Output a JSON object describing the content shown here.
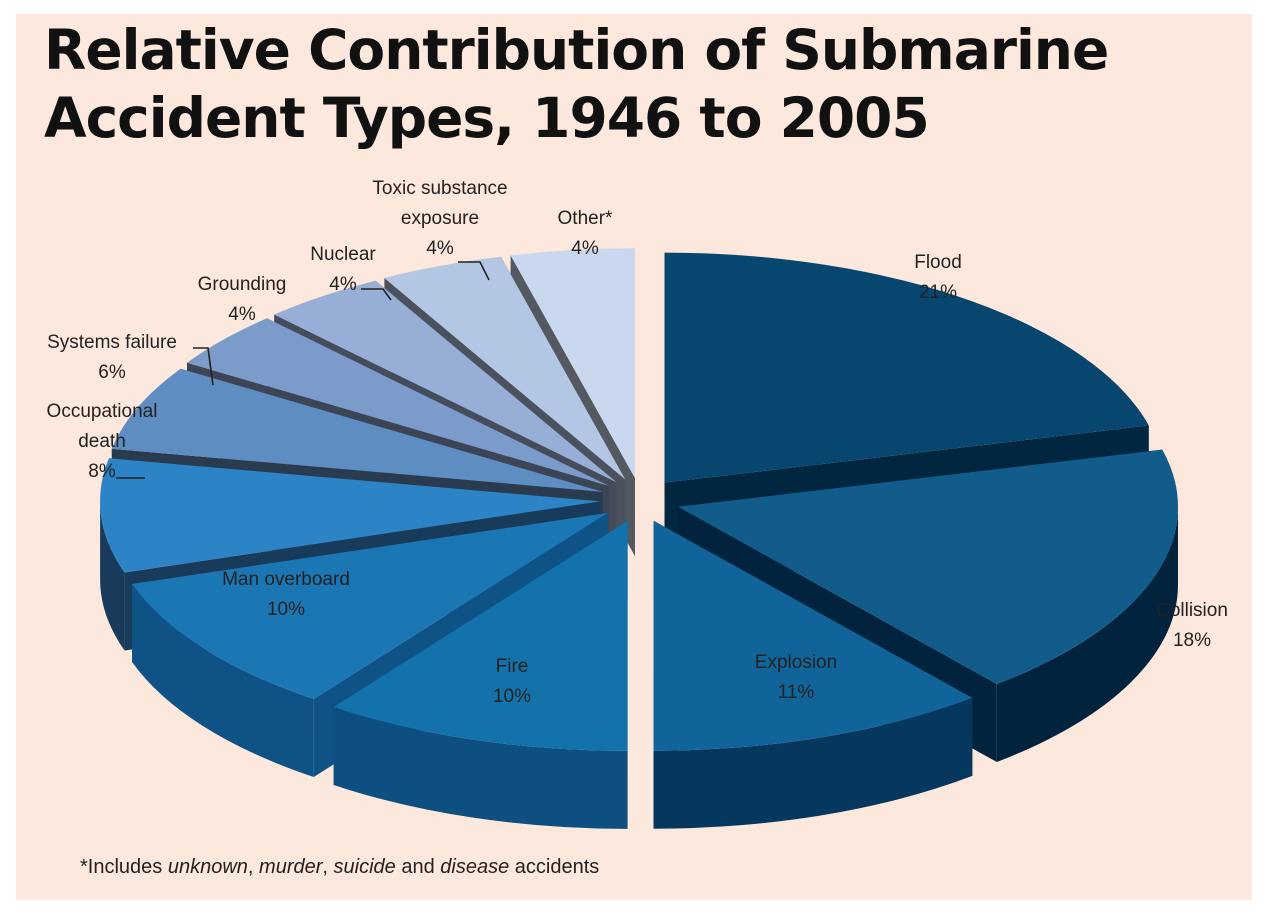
{
  "chart_data": {
    "type": "pie",
    "style": "3d-exploded",
    "title_line1": "Relative Contribution of Submarine",
    "title_line2": "Accident Types, 1946 to 2005",
    "unit": "%",
    "slices": [
      {
        "name": "Flood",
        "lines": [
          "Flood",
          "21%"
        ],
        "value": 21,
        "color": "#07476f",
        "side": "#002640"
      },
      {
        "name": "Collision",
        "lines": [
          "Collision",
          "18%"
        ],
        "value": 18,
        "color": "#125c8c",
        "side": "#02233d"
      },
      {
        "name": "Explosion",
        "lines": [
          "Explosion",
          "11%"
        ],
        "value": 11,
        "color": "#11649a",
        "side": "#06375f"
      },
      {
        "name": "Fire",
        "lines": [
          "Fire",
          "10%"
        ],
        "value": 10,
        "color": "#1472aa",
        "side": "#0d4f80"
      },
      {
        "name": "Man overboard",
        "lines": [
          "Man overboard",
          "10%"
        ],
        "value": 10,
        "color": "#1b76b4",
        "side": "#0f5386"
      },
      {
        "name": "Occupational death",
        "lines": [
          "Occupational",
          "death",
          "8%"
        ],
        "value": 8,
        "color": "#2c84c6",
        "side": "#183b5c"
      },
      {
        "name": "Systems failure",
        "lines": [
          "Systems failure",
          "6%"
        ],
        "value": 6,
        "color": "#5e8dc2",
        "side": "#2a3b4f"
      },
      {
        "name": "Grounding",
        "lines": [
          "Grounding",
          "4%"
        ],
        "value": 4,
        "color": "#7b9ccb",
        "side": "#3b4555"
      },
      {
        "name": "Nuclear",
        "lines": [
          "Nuclear",
          "4%"
        ],
        "value": 4,
        "color": "#97afd6",
        "side": "#454d5c"
      },
      {
        "name": "Toxic substance exposure",
        "lines": [
          "Toxic substance",
          "exposure",
          "4%"
        ],
        "value": 4,
        "color": "#b3c6e4",
        "side": "#4c525d"
      },
      {
        "name": "Other*",
        "lines": [
          "Other*",
          "4%"
        ],
        "value": 4,
        "color": "#c9d8ee",
        "side": "#545860"
      }
    ],
    "footnote": {
      "prefix": "*Includes ",
      "term1": "unknown",
      "sep1": ", ",
      "term2": "murder",
      "sep2": ", ",
      "term3": "suicide",
      "sep3": " and ",
      "term4": "disease",
      "suffix": " accidents"
    }
  }
}
